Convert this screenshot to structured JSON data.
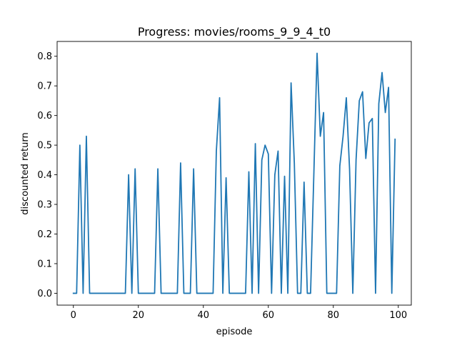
{
  "chart_data": {
    "type": "line",
    "title": "Progress: movies/rooms_9_9_4_t0",
    "xlabel": "episode",
    "ylabel": "discounted return",
    "xlim": [
      -5,
      104
    ],
    "ylim": [
      -0.04,
      0.85
    ],
    "xticks": [
      0,
      20,
      40,
      60,
      80,
      100
    ],
    "yticks": [
      0.0,
      0.1,
      0.2,
      0.3,
      0.4,
      0.5,
      0.6,
      0.7,
      0.8
    ],
    "grid": false,
    "legend": "none",
    "series": [
      {
        "color": "#1f77b4",
        "x": [
          0,
          1,
          2,
          3,
          4,
          5,
          6,
          7,
          8,
          9,
          10,
          11,
          12,
          13,
          14,
          15,
          16,
          17,
          18,
          19,
          20,
          21,
          22,
          23,
          24,
          25,
          26,
          27,
          28,
          29,
          30,
          31,
          32,
          33,
          34,
          35,
          36,
          37,
          38,
          39,
          40,
          41,
          42,
          43,
          44,
          45,
          46,
          47,
          48,
          49,
          50,
          51,
          52,
          53,
          54,
          55,
          56,
          57,
          58,
          59,
          60,
          61,
          62,
          63,
          64,
          65,
          66,
          67,
          68,
          69,
          70,
          71,
          72,
          73,
          74,
          75,
          76,
          77,
          78,
          79,
          80,
          81,
          82,
          83,
          84,
          85,
          86,
          87,
          88,
          89,
          90,
          91,
          92,
          93,
          94,
          95,
          96,
          97,
          98,
          99
        ],
        "y": [
          0,
          0,
          0.5,
          0,
          0.53,
          0,
          0,
          0,
          0,
          0,
          0,
          0,
          0,
          0,
          0,
          0,
          0,
          0.4,
          0,
          0.42,
          0,
          0,
          0,
          0,
          0,
          0,
          0.42,
          0,
          0,
          0,
          0,
          0,
          0,
          0.44,
          0,
          0,
          0,
          0.42,
          0,
          0,
          0,
          0,
          0,
          0,
          0.48,
          0.66,
          0,
          0.39,
          0,
          0,
          0,
          0,
          0,
          0,
          0.41,
          0,
          0.505,
          0,
          0.45,
          0.5,
          0.47,
          0,
          0.4,
          0.48,
          0,
          0.395,
          0,
          0.71,
          0.44,
          0,
          0,
          0.375,
          0,
          0,
          0.4,
          0.81,
          0.53,
          0.61,
          0,
          0,
          0,
          0,
          0.43,
          0.53,
          0.66,
          0.42,
          0,
          0.45,
          0.65,
          0.68,
          0.455,
          0.575,
          0.59,
          0,
          0.64,
          0.745,
          0.61,
          0.695,
          0,
          0.52
        ]
      }
    ]
  }
}
